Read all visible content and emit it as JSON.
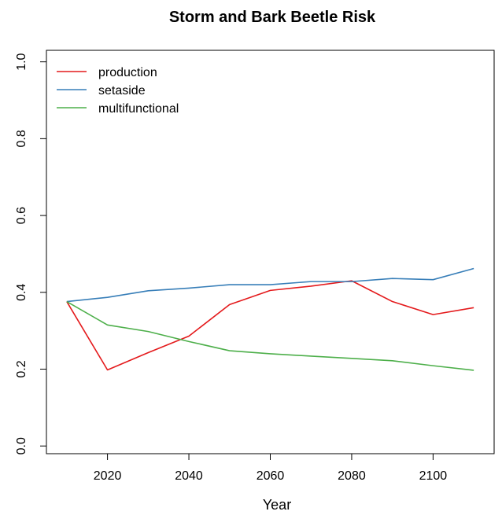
{
  "chart_data": {
    "type": "line",
    "title": "Storm and Bark Beetle Risk",
    "xlabel": "Year",
    "ylabel": "",
    "xlim": [
      2005,
      2115
    ],
    "ylim": [
      -0.02,
      1.03
    ],
    "x_ticks": [
      2020,
      2040,
      2060,
      2080,
      2100
    ],
    "y_ticks": [
      0.0,
      0.2,
      0.4,
      0.6,
      0.8,
      1.0
    ],
    "x_tick_labels": [
      "2020",
      "2040",
      "2060",
      "2080",
      "2100"
    ],
    "y_tick_labels": [
      "0.0",
      "0.2",
      "0.4",
      "0.6",
      "0.8",
      "1.0"
    ],
    "legend_position": "top-left",
    "grid": false,
    "x": [
      2010,
      2020,
      2030,
      2040,
      2050,
      2060,
      2070,
      2080,
      2090,
      2100,
      2110
    ],
    "series": [
      {
        "name": "production",
        "color": "#e41a1c",
        "values": [
          0.376,
          0.198,
          0.243,
          0.286,
          0.368,
          0.405,
          0.416,
          0.43,
          0.376,
          0.342,
          0.36
        ]
      },
      {
        "name": "setaside",
        "color": "#377eb8",
        "values": [
          0.376,
          0.387,
          0.404,
          0.411,
          0.42,
          0.42,
          0.428,
          0.428,
          0.436,
          0.433,
          0.462
        ]
      },
      {
        "name": "multifunctional",
        "color": "#4daf4a",
        "values": [
          0.376,
          0.315,
          0.298,
          0.272,
          0.248,
          0.24,
          0.234,
          0.228,
          0.222,
          0.209,
          0.197
        ]
      }
    ]
  }
}
